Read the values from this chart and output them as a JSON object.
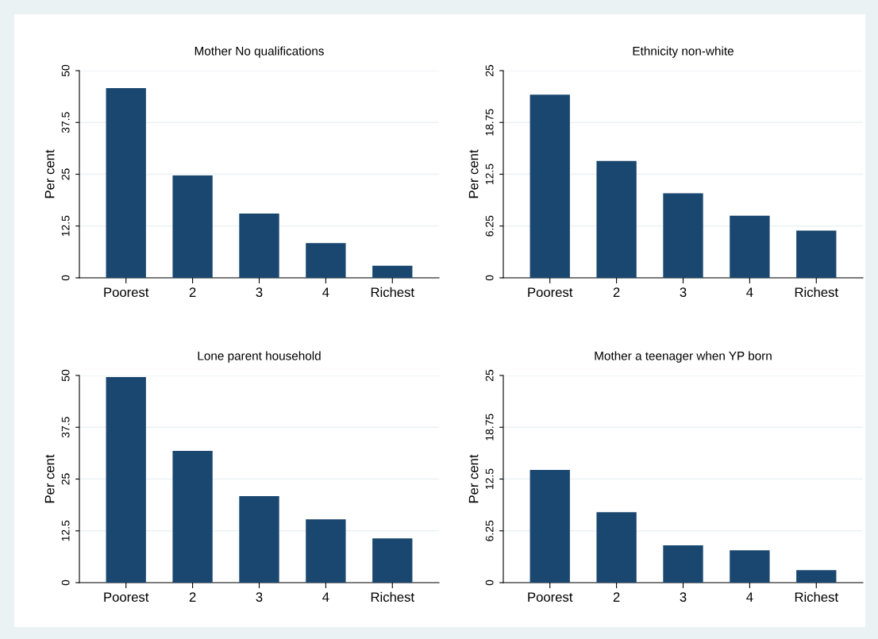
{
  "chart_data": [
    {
      "type": "bar",
      "title": "Mother No qualifications",
      "ylabel": "Per cent",
      "categories": [
        "Poorest",
        "2",
        "3",
        "4",
        "Richest"
      ],
      "values": [
        45.8,
        24.7,
        15.5,
        8.4,
        2.9
      ],
      "color": "#1a476f",
      "ylim": [
        0,
        50
      ],
      "yticks": [
        0,
        12.5,
        25,
        37.5,
        50
      ],
      "grid": "y"
    },
    {
      "type": "bar",
      "title": "Ethnicity non-white",
      "ylabel": "Per cent",
      "categories": [
        "Poorest",
        "2",
        "3",
        "4",
        "Richest"
      ],
      "values": [
        22.1,
        14.1,
        10.2,
        7.5,
        5.7
      ],
      "color": "#1a476f",
      "ylim": [
        0,
        25
      ],
      "yticks": [
        0,
        6.25,
        12.5,
        18.75,
        25
      ],
      "grid": "y"
    },
    {
      "type": "bar",
      "title": "Lone parent household",
      "ylabel": "Per cent",
      "categories": [
        "Poorest",
        "2",
        "3",
        "4",
        "Richest"
      ],
      "values": [
        49.6,
        31.8,
        20.9,
        15.3,
        10.7
      ],
      "color": "#1a476f",
      "ylim": [
        0,
        50
      ],
      "yticks": [
        0,
        12.5,
        25,
        37.5,
        50
      ],
      "grid": "y"
    },
    {
      "type": "bar",
      "title": "Mother a teenager when YP born",
      "ylabel": "Per cent",
      "categories": [
        "Poorest",
        "2",
        "3",
        "4",
        "Richest"
      ],
      "values": [
        13.6,
        8.5,
        4.5,
        3.9,
        1.5
      ],
      "color": "#1a476f",
      "ylim": [
        0,
        25
      ],
      "yticks": [
        0,
        6.25,
        12.5,
        18.75,
        25
      ],
      "grid": "y"
    }
  ]
}
